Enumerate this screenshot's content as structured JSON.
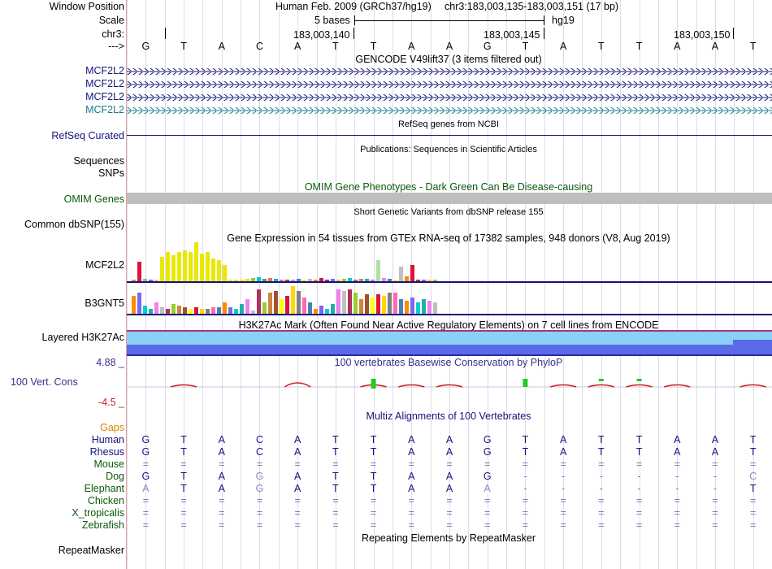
{
  "header": {
    "window_position_label": "Window Position",
    "scale_label": "Scale",
    "chrom_label": "chr3:",
    "strand_label": "--->",
    "assembly": "Human Feb. 2009 (GRCh37/hg19)",
    "position": "chr3:183,003,135-183,003,151 (17 bp)",
    "scale_text": "5 bases",
    "db": "hg19",
    "ticks": [
      "183,003,140",
      "183,003,145",
      "183,003,150"
    ]
  },
  "sequence": [
    "G",
    "T",
    "A",
    "C",
    "A",
    "T",
    "T",
    "A",
    "A",
    "G",
    "T",
    "A",
    "T",
    "T",
    "A",
    "A",
    "T"
  ],
  "tracks": {
    "gencode_title": "GENCODE V49lift37 (3 items filtered out)",
    "gencode_genes": [
      "MCF2L2",
      "MCF2L2",
      "MCF2L2",
      "MCF2L2"
    ],
    "refseq_title": "RefSeq genes from NCBI",
    "refseq_label": "RefSeq Curated",
    "pubs_title": "Publications: Sequences in Scientific Articles",
    "pubs_label_1": "Sequences",
    "pubs_label_2": "SNPs",
    "omim_title": "OMIM Gene Phenotypes - Dark Green Can Be Disease-causing",
    "omim_label": "OMIM Genes",
    "dbsnp_title": "Short Genetic Variants from dbSNP release 155",
    "dbsnp_label": "Common dbSNP(155)",
    "gtex_title": "Gene Expression in 54 tissues from GTEx RNA-seq of 17382 samples, 948 donors (V8, Aug 2019)",
    "gtex_gene1": "MCF2L2",
    "gtex_gene2": "B3GNT5",
    "h3k27_title": "H3K27Ac Mark (Often Found Near Active Regulatory Elements) on 7 cell lines from ENCODE",
    "h3k27_label": "Layered H3K27Ac",
    "cons_title": "100 vertebrates Basewise Conservation by PhyloP",
    "cons_label": "100 Vert. Cons",
    "cons_max": "4.88 _",
    "cons_min": "-4.5 _",
    "multiz_title": "Multiz Alignments of 100 Vertebrates",
    "rmsk_title": "Repeating Elements by RepeatMasker",
    "rmsk_label": "RepeatMasker"
  },
  "alignment": {
    "gaps_label": "Gaps",
    "species": [
      {
        "name": "Human",
        "bases": [
          "G",
          "T",
          "A",
          "C",
          "A",
          "T",
          "T",
          "A",
          "A",
          "G",
          "T",
          "A",
          "T",
          "T",
          "A",
          "A",
          "T"
        ]
      },
      {
        "name": "Rhesus",
        "bases": [
          "G",
          "T",
          "A",
          "C",
          "A",
          "T",
          "T",
          "A",
          "A",
          "G",
          "T",
          "A",
          "T",
          "T",
          "A",
          "A",
          "T"
        ]
      },
      {
        "name": "Mouse",
        "bases": [
          "=",
          "=",
          "=",
          "=",
          "=",
          "=",
          "=",
          "=",
          "=",
          "=",
          "=",
          "=",
          "=",
          "=",
          "=",
          "=",
          "="
        ]
      },
      {
        "name": "Dog",
        "bases": [
          "G",
          "T",
          "A",
          "G",
          "A",
          "T",
          "T",
          "A",
          "A",
          "G",
          "-",
          "-",
          "-",
          "-",
          "-",
          "-",
          "C"
        ]
      },
      {
        "name": "Elephant",
        "bases": [
          "A",
          "T",
          "A",
          "G",
          "A",
          "T",
          "T",
          "A",
          "A",
          "A",
          "-",
          "-",
          "-",
          "-",
          "-",
          "-",
          "T"
        ]
      },
      {
        "name": "Chicken",
        "bases": [
          "=",
          "=",
          "=",
          "=",
          "=",
          "=",
          "=",
          "=",
          "=",
          "=",
          "=",
          "=",
          "=",
          "=",
          "=",
          "=",
          "="
        ]
      },
      {
        "name": "X_tropicalis",
        "bases": [
          "=",
          "=",
          "=",
          "=",
          "=",
          "=",
          "=",
          "=",
          "=",
          "=",
          "=",
          "=",
          "=",
          "=",
          "=",
          "=",
          "="
        ]
      },
      {
        "name": "Zebrafish",
        "bases": [
          "=",
          "=",
          "=",
          "=",
          "=",
          "=",
          "=",
          "=",
          "=",
          "=",
          "=",
          "=",
          "=",
          "=",
          "=",
          "=",
          "="
        ]
      }
    ]
  },
  "colors": {
    "navy": "#14147a",
    "teal": "#1a7a8a",
    "green": "#0a5a0a",
    "orange": "#d58a00",
    "gridline": "#d8d8f0",
    "leftline": "#e8a0a0"
  }
}
